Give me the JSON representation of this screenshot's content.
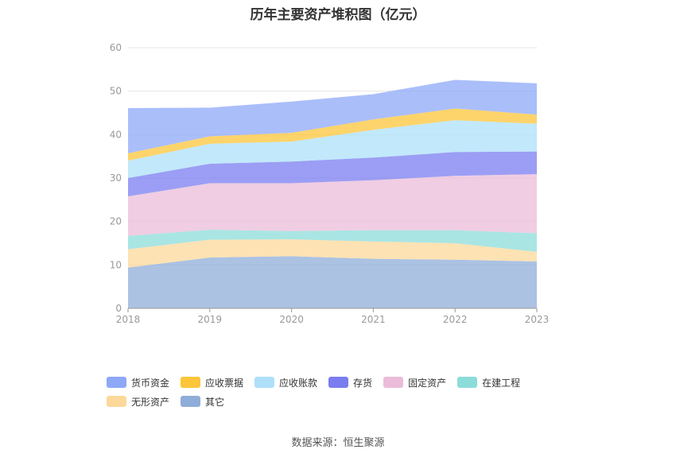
{
  "title": "历年主要资产堆积图（亿元）",
  "source": "数据来源：恒生聚源",
  "chart_data": {
    "type": "area",
    "stacked": true,
    "title": "历年主要资产堆积图（亿元）",
    "xlabel": "",
    "ylabel": "",
    "categories": [
      "2018",
      "2019",
      "2020",
      "2021",
      "2022",
      "2023"
    ],
    "ylim": [
      0,
      60
    ],
    "yticks": [
      0,
      10,
      20,
      30,
      40,
      50,
      60
    ],
    "grid": true,
    "legend_position": "bottom",
    "series": [
      {
        "name": "其它",
        "color": "#8fadd9",
        "values": [
          9.4,
          11.7,
          12.0,
          11.4,
          11.2,
          10.8
        ]
      },
      {
        "name": "无形资产",
        "color": "#fcd89a",
        "values": [
          4.2,
          4.1,
          3.9,
          4.0,
          3.8,
          2.2
        ]
      },
      {
        "name": "在建工程",
        "color": "#8cdcda",
        "values": [
          3.1,
          2.3,
          1.9,
          2.6,
          3.0,
          4.3
        ]
      },
      {
        "name": "固定资产",
        "color": "#ebbcd9",
        "values": [
          9.1,
          10.7,
          11.0,
          11.5,
          12.5,
          13.6
        ]
      },
      {
        "name": "存货",
        "color": "#7a7df0",
        "values": [
          4.2,
          4.5,
          5.0,
          5.2,
          5.5,
          5.2
        ]
      },
      {
        "name": "应收账款",
        "color": "#aee0fa",
        "values": [
          4.0,
          4.6,
          4.6,
          6.4,
          7.3,
          6.4
        ]
      },
      {
        "name": "应收票据",
        "color": "#fcc53a",
        "values": [
          1.7,
          1.7,
          2.0,
          2.4,
          2.7,
          2.1
        ]
      },
      {
        "name": "货币资金",
        "color": "#8ea8f8",
        "values": [
          10.4,
          6.6,
          7.2,
          5.8,
          6.6,
          7.2
        ]
      }
    ],
    "legend_order": [
      "货币资金",
      "应收票据",
      "应收账款",
      "存货",
      "固定资产",
      "在建工程",
      "无形资产",
      "其它"
    ]
  }
}
